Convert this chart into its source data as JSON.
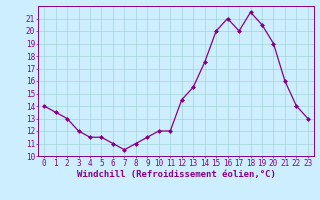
{
  "x": [
    0,
    1,
    2,
    3,
    4,
    5,
    6,
    7,
    8,
    9,
    10,
    11,
    12,
    13,
    14,
    15,
    16,
    17,
    18,
    19,
    20,
    21,
    22,
    23
  ],
  "y": [
    14.0,
    13.5,
    13.0,
    12.0,
    11.5,
    11.5,
    11.0,
    10.5,
    11.0,
    11.5,
    12.0,
    12.0,
    14.5,
    15.5,
    17.5,
    20.0,
    21.0,
    20.0,
    21.5,
    20.5,
    19.0,
    16.0,
    14.0,
    13.0
  ],
  "line_color": "#880088",
  "marker": "D",
  "marker_size": 2,
  "line_width": 0.9,
  "xlabel": "Windchill (Refroidissement éolien,°C)",
  "xlabel_fontsize": 6.5,
  "xlim": [
    -0.5,
    23.5
  ],
  "ylim": [
    10,
    22
  ],
  "yticks": [
    10,
    11,
    12,
    13,
    14,
    15,
    16,
    17,
    18,
    19,
    20,
    21
  ],
  "xticks": [
    0,
    1,
    2,
    3,
    4,
    5,
    6,
    7,
    8,
    9,
    10,
    11,
    12,
    13,
    14,
    15,
    16,
    17,
    18,
    19,
    20,
    21,
    22,
    23
  ],
  "grid_color": "#99cccc",
  "bg_color": "#cceeff",
  "tick_color": "#880088",
  "tick_fontsize": 5.5,
  "spine_color": "#880088",
  "xlabel_fontweight": "bold"
}
